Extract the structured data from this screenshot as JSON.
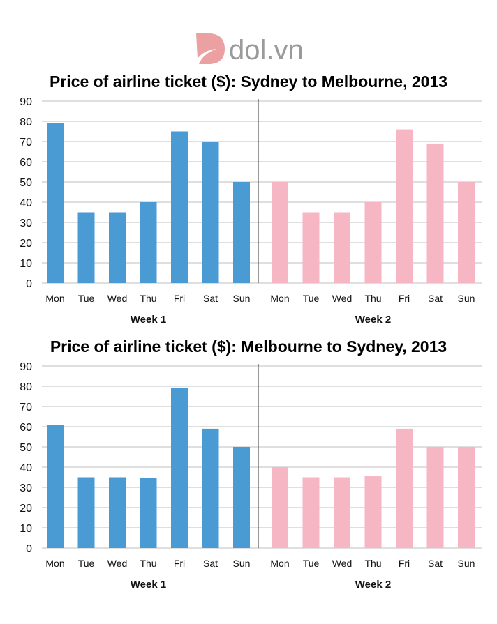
{
  "logo": {
    "text": "dol.vn"
  },
  "colors": {
    "week1": "#4a9ad4",
    "week2": "#f7b6c4",
    "grid": "#cccccc",
    "divider": "#555555"
  },
  "chart_data": [
    {
      "type": "bar",
      "title": "Price of airline ticket ($): Sydney to Melbourne, 2013",
      "ylim": [
        0,
        90
      ],
      "yticks": [
        "0",
        "10",
        "20",
        "30",
        "40",
        "50",
        "60",
        "70",
        "80",
        "90"
      ],
      "grid": true,
      "groups": [
        {
          "name": "Week 1",
          "categories": [
            "Mon",
            "Tue",
            "Wed",
            "Thu",
            "Fri",
            "Sat",
            "Sun"
          ],
          "values": [
            79,
            35,
            35,
            40,
            75,
            70,
            50
          ]
        },
        {
          "name": "Week 2",
          "categories": [
            "Mon",
            "Tue",
            "Wed",
            "Thu",
            "Fri",
            "Sat",
            "Sun"
          ],
          "values": [
            50,
            35,
            35,
            40,
            76,
            69,
            50
          ]
        }
      ]
    },
    {
      "type": "bar",
      "title": "Price of airline ticket ($): Melbourne to Sydney, 2013",
      "ylim": [
        0,
        90
      ],
      "yticks": [
        "0",
        "10",
        "20",
        "30",
        "40",
        "50",
        "60",
        "70",
        "80",
        "90"
      ],
      "grid": true,
      "groups": [
        {
          "name": "Week 1",
          "categories": [
            "Mon",
            "Tue",
            "Wed",
            "Thu",
            "Fri",
            "Sat",
            "Sun"
          ],
          "values": [
            61,
            35,
            35,
            34.5,
            79,
            59,
            50
          ]
        },
        {
          "name": "Week 2",
          "categories": [
            "Mon",
            "Tue",
            "Wed",
            "Thu",
            "Fri",
            "Sat",
            "Sun"
          ],
          "values": [
            40,
            35,
            35,
            35.5,
            59,
            50,
            50
          ]
        }
      ]
    }
  ]
}
